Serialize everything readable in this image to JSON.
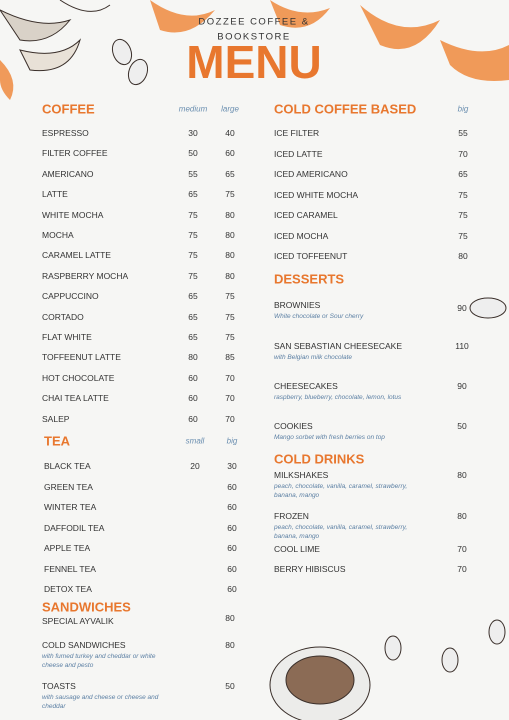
{
  "header": {
    "line1": "DOZZEE COFFEE &",
    "line2": "BOOKSTORE",
    "title": "MENU"
  },
  "sections": [
    {
      "title": "COFFEE",
      "columns": [
        "medium",
        "large"
      ],
      "items": [
        {
          "name": "ESPRESSO",
          "prices": [
            30,
            40
          ]
        },
        {
          "name": "FILTER COFFEE",
          "prices": [
            50,
            60
          ]
        },
        {
          "name": "AMERICANO",
          "prices": [
            55,
            65
          ]
        },
        {
          "name": "LATTE",
          "prices": [
            65,
            75
          ]
        },
        {
          "name": "WHITE MOCHA",
          "prices": [
            75,
            80
          ]
        },
        {
          "name": "MOCHA",
          "prices": [
            75,
            80
          ]
        },
        {
          "name": "CARAMEL LATTE",
          "prices": [
            75,
            80
          ]
        },
        {
          "name": "RASPBERRY MOCHA",
          "prices": [
            75,
            80
          ]
        },
        {
          "name": "CAPPUCCINO",
          "prices": [
            65,
            75
          ]
        },
        {
          "name": "CORTADO",
          "prices": [
            65,
            75
          ]
        },
        {
          "name": "FLAT WHITE",
          "prices": [
            65,
            75
          ]
        },
        {
          "name": "TOFFEENUT LATTE",
          "prices": [
            80,
            85
          ]
        },
        {
          "name": "HOT CHOCOLATE",
          "prices": [
            60,
            70
          ]
        },
        {
          "name": "CHAI TEA LATTE",
          "prices": [
            60,
            70
          ]
        },
        {
          "name": "SALEP",
          "prices": [
            60,
            70
          ]
        }
      ]
    },
    {
      "title": "TEA",
      "columns": [
        "small",
        "big"
      ],
      "items": [
        {
          "name": "BLACK TEA",
          "prices": [
            20,
            30
          ]
        },
        {
          "name": "GREEN TEA",
          "prices": [
            null,
            60
          ]
        },
        {
          "name": "WINTER TEA",
          "prices": [
            null,
            60
          ]
        },
        {
          "name": "DAFFODIL TEA",
          "prices": [
            null,
            60
          ]
        },
        {
          "name": "APPLE TEA",
          "prices": [
            null,
            60
          ]
        },
        {
          "name": "FENNEL TEA",
          "prices": [
            null,
            60
          ]
        },
        {
          "name": "DETOX TEA",
          "prices": [
            null,
            60
          ]
        }
      ]
    },
    {
      "title": "SANDWICHES",
      "items": [
        {
          "name": "SPECIAL AYVALIK",
          "prices": [
            80
          ]
        },
        {
          "name": "COLD SANDWICHES",
          "description": "with fumed turkey and cheddar or white cheese and pesto",
          "prices": [
            80
          ]
        },
        {
          "name": "TOASTS",
          "description": "with sausage and cheese or cheese and cheddar",
          "prices": [
            50
          ]
        }
      ]
    },
    {
      "title": "COLD COFFEE BASED",
      "columns": [
        "big"
      ],
      "items": [
        {
          "name": "ICE FILTER",
          "prices": [
            55
          ]
        },
        {
          "name": "ICED LATTE",
          "prices": [
            70
          ]
        },
        {
          "name": "ICED AMERICANO",
          "prices": [
            65
          ]
        },
        {
          "name": "ICED WHITE MOCHA",
          "prices": [
            75
          ]
        },
        {
          "name": "ICED CARAMEL",
          "prices": [
            75
          ]
        },
        {
          "name": "ICED MOCHA",
          "prices": [
            75
          ]
        },
        {
          "name": "ICED TOFFEENUT",
          "prices": [
            80
          ]
        }
      ]
    },
    {
      "title": "DESSERTS",
      "items": [
        {
          "name": "BROWNIES",
          "description": "White chocolate or Sour cherry",
          "prices": [
            90
          ]
        },
        {
          "name": "SAN SEBASTIAN CHEESECAKE",
          "description": "with Belgian milk chocolate",
          "prices": [
            110
          ]
        },
        {
          "name": "CHEESECAKES",
          "description": "raspberry, blueberry, chocolate, lemon, lotus",
          "prices": [
            90
          ]
        },
        {
          "name": "COOKIES",
          "description": "Mango sorbet with fresh berries on top",
          "prices": [
            50
          ]
        }
      ]
    },
    {
      "title": "COLD DRINKS",
      "items": [
        {
          "name": "MILKSHAKES",
          "description": "peach, chocolate, vanilla, caramel, strawberry, banana, mango",
          "prices": [
            80
          ]
        },
        {
          "name": "FROZEN",
          "description": "peach, chocolate, vanilla, caramel, strawberry, banana, mango",
          "prices": [
            80
          ]
        },
        {
          "name": "COOL LIME",
          "prices": [
            70
          ]
        },
        {
          "name": "BERRY HIBISCUS",
          "prices": [
            70
          ]
        }
      ]
    }
  ]
}
